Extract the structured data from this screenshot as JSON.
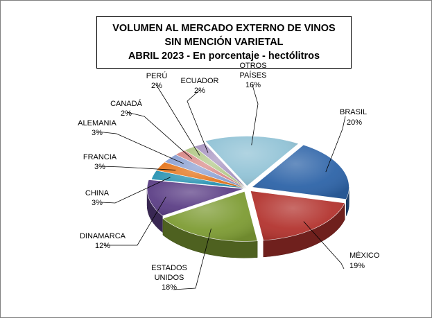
{
  "chart_data": {
    "type": "pie",
    "title_lines": [
      "VOLUMEN AL MERCADO EXTERNO DE VINOS",
      "SIN MENCIÓN VARIETAL",
      "ABRIL 2023 - En porcentaje - hectólitros"
    ],
    "slices": [
      {
        "label_lines": [
          "BRASIL"
        ],
        "value": 20,
        "value_label": "20%",
        "color": "#2e64a8"
      },
      {
        "label_lines": [
          "MÉXICO"
        ],
        "value": 19,
        "value_label": "19%",
        "color": "#b3342f"
      },
      {
        "label_lines": [
          "ESTADOS",
          "UNIDOS"
        ],
        "value": 18,
        "value_label": "18%",
        "color": "#7e9c34"
      },
      {
        "label_lines": [
          "DINAMARCA"
        ],
        "value": 12,
        "value_label": "12%",
        "color": "#5c3f86"
      },
      {
        "label_lines": [
          "CHINA"
        ],
        "value": 3,
        "value_label": "3%",
        "color": "#2993b2"
      },
      {
        "label_lines": [
          "FRANCIA"
        ],
        "value": 3,
        "value_label": "3%",
        "color": "#e5761e"
      },
      {
        "label_lines": [
          "ALEMANIA"
        ],
        "value": 3,
        "value_label": "3%",
        "color": "#8da2d3"
      },
      {
        "label_lines": [
          "CANADÁ"
        ],
        "value": 2,
        "value_label": "2%",
        "color": "#d98b8a"
      },
      {
        "label_lines": [
          "PERÚ"
        ],
        "value": 2,
        "value_label": "2%",
        "color": "#b3c98a"
      },
      {
        "label_lines": [
          "ECUADOR"
        ],
        "value": 2,
        "value_label": "2%",
        "color": "#a996c2"
      },
      {
        "label_lines": [
          "OTROS",
          "PAÍSES"
        ],
        "value": 16,
        "value_label": "16%",
        "color": "#92c3d6"
      }
    ],
    "legend": "none"
  }
}
